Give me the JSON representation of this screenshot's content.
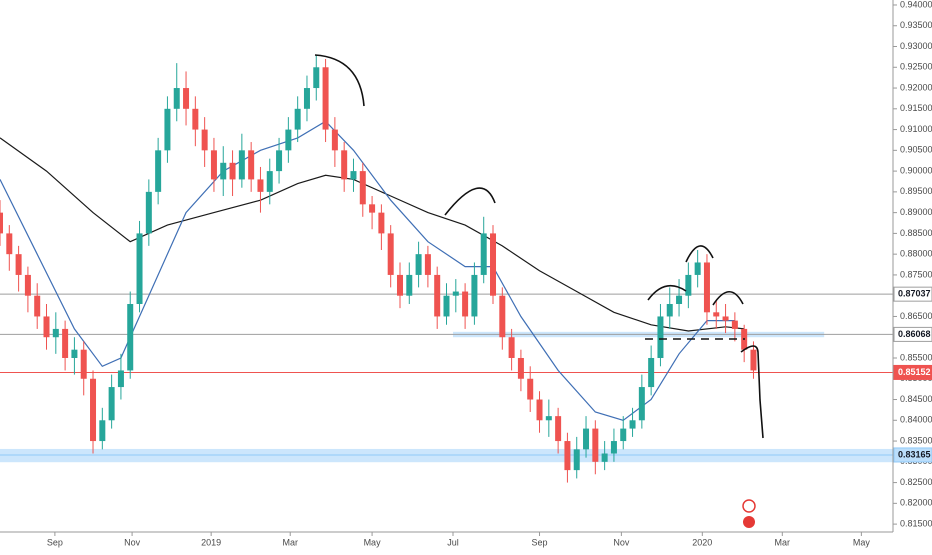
{
  "chart_data": {
    "type": "candlestick",
    "up_color": "#26a69a",
    "down_color": "#ef5350",
    "xlim": [
      0,
      96
    ],
    "ylim": [
      0.8131,
      0.9412
    ],
    "xticks": [
      {
        "value": 5.9,
        "label": "Sep"
      },
      {
        "value": 14.2,
        "label": "Nov"
      },
      {
        "value": 22.7,
        "label": "2019"
      },
      {
        "value": 31.2,
        "label": "Mar"
      },
      {
        "value": 40.0,
        "label": "May"
      },
      {
        "value": 48.7,
        "label": "Jul"
      },
      {
        "value": 58.0,
        "label": "Sep"
      },
      {
        "value": 66.8,
        "label": "Nov"
      },
      {
        "value": 75.5,
        "label": "2020"
      },
      {
        "value": 84.1,
        "label": "Mar"
      },
      {
        "value": 92.6,
        "label": "May"
      }
    ],
    "yticks": [
      {
        "value": 0.815,
        "label": "0.81500"
      },
      {
        "value": 0.82,
        "label": "0.82000"
      },
      {
        "value": 0.825,
        "label": "0.82500"
      },
      {
        "value": 0.83,
        "label": "0.83000"
      },
      {
        "value": 0.835,
        "label": "0.83500"
      },
      {
        "value": 0.84,
        "label": "0.84000"
      },
      {
        "value": 0.845,
        "label": "0.84500"
      },
      {
        "value": 0.85,
        "label": "0.85000"
      },
      {
        "value": 0.855,
        "label": "0.85500"
      },
      {
        "value": 0.86,
        "label": "0.86000"
      },
      {
        "value": 0.865,
        "label": "0.86500"
      },
      {
        "value": 0.87,
        "label": "0.87000"
      },
      {
        "value": 0.875,
        "label": "0.87500"
      },
      {
        "value": 0.88,
        "label": "0.88000"
      },
      {
        "value": 0.885,
        "label": "0.88500"
      },
      {
        "value": 0.89,
        "label": "0.89000"
      },
      {
        "value": 0.895,
        "label": "0.89500"
      },
      {
        "value": 0.9,
        "label": "0.90000"
      },
      {
        "value": 0.905,
        "label": "0.90500"
      },
      {
        "value": 0.91,
        "label": "0.91000"
      },
      {
        "value": 0.915,
        "label": "0.91500"
      },
      {
        "value": 0.92,
        "label": "0.92000"
      },
      {
        "value": 0.925,
        "label": "0.92500"
      },
      {
        "value": 0.93,
        "label": "0.93000"
      },
      {
        "value": 0.935,
        "label": "0.93500"
      },
      {
        "value": 0.94,
        "label": "0.94000"
      }
    ],
    "x": [
      0,
      1,
      2,
      3,
      4,
      5,
      6,
      7,
      8,
      9,
      10,
      11,
      12,
      13,
      14,
      15,
      16,
      17,
      18,
      19,
      20,
      21,
      22,
      23,
      24,
      25,
      26,
      27,
      28,
      29,
      30,
      31,
      32,
      33,
      34,
      35,
      36,
      37,
      38,
      39,
      40,
      41,
      42,
      43,
      44,
      45,
      46,
      47,
      48,
      49,
      50,
      51,
      52,
      53,
      54,
      55,
      56,
      57,
      58,
      59,
      60,
      61,
      62,
      63,
      64,
      65,
      66,
      67,
      68,
      69,
      70,
      71,
      72,
      73,
      74,
      75,
      76,
      77,
      78,
      79,
      80,
      81
    ],
    "candles": [
      [
        0.89,
        0.893,
        0.882,
        0.885
      ],
      [
        0.885,
        0.887,
        0.876,
        0.88
      ],
      [
        0.88,
        0.882,
        0.871,
        0.875
      ],
      [
        0.875,
        0.877,
        0.866,
        0.87
      ],
      [
        0.87,
        0.873,
        0.862,
        0.865
      ],
      [
        0.865,
        0.868,
        0.857,
        0.86
      ],
      [
        0.86,
        0.866,
        0.856,
        0.862
      ],
      [
        0.862,
        0.864,
        0.852,
        0.855
      ],
      [
        0.855,
        0.86,
        0.851,
        0.857
      ],
      [
        0.857,
        0.859,
        0.846,
        0.85
      ],
      [
        0.85,
        0.852,
        0.832,
        0.835
      ],
      [
        0.835,
        0.843,
        0.833,
        0.84
      ],
      [
        0.84,
        0.851,
        0.838,
        0.848
      ],
      [
        0.848,
        0.856,
        0.845,
        0.852
      ],
      [
        0.852,
        0.871,
        0.85,
        0.868
      ],
      [
        0.868,
        0.888,
        0.866,
        0.885
      ],
      [
        0.885,
        0.898,
        0.882,
        0.895
      ],
      [
        0.895,
        0.908,
        0.892,
        0.905
      ],
      [
        0.905,
        0.918,
        0.902,
        0.915
      ],
      [
        0.915,
        0.926,
        0.912,
        0.92
      ],
      [
        0.92,
        0.924,
        0.911,
        0.915
      ],
      [
        0.915,
        0.918,
        0.906,
        0.91
      ],
      [
        0.91,
        0.913,
        0.901,
        0.905
      ],
      [
        0.905,
        0.908,
        0.895,
        0.898
      ],
      [
        0.898,
        0.906,
        0.894,
        0.902
      ],
      [
        0.902,
        0.905,
        0.894,
        0.898
      ],
      [
        0.898,
        0.909,
        0.896,
        0.905
      ],
      [
        0.905,
        0.907,
        0.895,
        0.898
      ],
      [
        0.898,
        0.901,
        0.89,
        0.895
      ],
      [
        0.895,
        0.903,
        0.892,
        0.9
      ],
      [
        0.9,
        0.908,
        0.897,
        0.905
      ],
      [
        0.905,
        0.913,
        0.902,
        0.91
      ],
      [
        0.91,
        0.918,
        0.907,
        0.915
      ],
      [
        0.915,
        0.923,
        0.912,
        0.92
      ],
      [
        0.92,
        0.928,
        0.917,
        0.925
      ],
      [
        0.925,
        0.927,
        0.907,
        0.91
      ],
      [
        0.91,
        0.913,
        0.901,
        0.905
      ],
      [
        0.905,
        0.907,
        0.895,
        0.898
      ],
      [
        0.898,
        0.903,
        0.895,
        0.9
      ],
      [
        0.9,
        0.902,
        0.889,
        0.892
      ],
      [
        0.892,
        0.894,
        0.886,
        0.89
      ],
      [
        0.89,
        0.892,
        0.881,
        0.885
      ],
      [
        0.885,
        0.887,
        0.872,
        0.875
      ],
      [
        0.875,
        0.878,
        0.867,
        0.87
      ],
      [
        0.87,
        0.878,
        0.868,
        0.875
      ],
      [
        0.875,
        0.883,
        0.872,
        0.88
      ],
      [
        0.88,
        0.882,
        0.872,
        0.875
      ],
      [
        0.875,
        0.877,
        0.862,
        0.865
      ],
      [
        0.865,
        0.873,
        0.863,
        0.87
      ],
      [
        0.87,
        0.874,
        0.866,
        0.871
      ],
      [
        0.871,
        0.873,
        0.862,
        0.865
      ],
      [
        0.865,
        0.878,
        0.863,
        0.875
      ],
      [
        0.875,
        0.889,
        0.873,
        0.885
      ],
      [
        0.885,
        0.887,
        0.868,
        0.87
      ],
      [
        0.87,
        0.872,
        0.857,
        0.86
      ],
      [
        0.86,
        0.862,
        0.852,
        0.855
      ],
      [
        0.855,
        0.857,
        0.847,
        0.85
      ],
      [
        0.85,
        0.853,
        0.842,
        0.845
      ],
      [
        0.845,
        0.847,
        0.837,
        0.84
      ],
      [
        0.84,
        0.845,
        0.836,
        0.841
      ],
      [
        0.841,
        0.843,
        0.832,
        0.835
      ],
      [
        0.835,
        0.837,
        0.825,
        0.828
      ],
      [
        0.828,
        0.836,
        0.826,
        0.833
      ],
      [
        0.833,
        0.841,
        0.831,
        0.838
      ],
      [
        0.838,
        0.84,
        0.827,
        0.83
      ],
      [
        0.83,
        0.835,
        0.828,
        0.832
      ],
      [
        0.832,
        0.838,
        0.83,
        0.835
      ],
      [
        0.835,
        0.841,
        0.833,
        0.838
      ],
      [
        0.838,
        0.843,
        0.836,
        0.84
      ],
      [
        0.84,
        0.851,
        0.838,
        0.848
      ],
      [
        0.848,
        0.858,
        0.846,
        0.855
      ],
      [
        0.855,
        0.868,
        0.853,
        0.865
      ],
      [
        0.865,
        0.872,
        0.862,
        0.868
      ],
      [
        0.868,
        0.874,
        0.865,
        0.87
      ],
      [
        0.87,
        0.878,
        0.867,
        0.875
      ],
      [
        0.875,
        0.881,
        0.872,
        0.878
      ],
      [
        0.878,
        0.88,
        0.863,
        0.866
      ],
      [
        0.866,
        0.869,
        0.862,
        0.865
      ],
      [
        0.865,
        0.868,
        0.861,
        0.864
      ],
      [
        0.864,
        0.866,
        0.859,
        0.862
      ],
      [
        0.862,
        0.863,
        0.854,
        0.857
      ],
      [
        0.857,
        0.859,
        0.85,
        0.852
      ]
    ],
    "overlays": [
      {
        "color": "#1a1a1a",
        "x": [
          0,
          5,
          10,
          14,
          18,
          23,
          28,
          32,
          35,
          38,
          42,
          46,
          50,
          54,
          58,
          62,
          66,
          70,
          74,
          78,
          80
        ],
        "values": [
          0.908,
          0.9,
          0.89,
          0.883,
          0.887,
          0.89,
          0.893,
          0.897,
          0.899,
          0.898,
          0.894,
          0.89,
          0.887,
          0.882,
          0.876,
          0.871,
          0.866,
          0.863,
          0.8615,
          0.8625,
          0.862
        ]
      },
      {
        "color": "#3f6fb5",
        "x": [
          0,
          4,
          8,
          11,
          13,
          16,
          20,
          24,
          28,
          32,
          35,
          38,
          42,
          46,
          50,
          53,
          56,
          60,
          64,
          67,
          70,
          73,
          76,
          79
        ],
        "values": [
          0.898,
          0.88,
          0.862,
          0.853,
          0.855,
          0.87,
          0.89,
          0.9,
          0.905,
          0.908,
          0.912,
          0.905,
          0.893,
          0.883,
          0.877,
          0.877,
          0.865,
          0.852,
          0.842,
          0.84,
          0.845,
          0.856,
          0.864,
          0.864
        ]
      }
    ],
    "zones": [
      {
        "from": 0.86,
        "to": 0.8613,
        "x": [
          48.7,
          88.6
        ],
        "color": "#bbdefb"
      },
      {
        "from": 0.8299,
        "to": 0.8331,
        "x": [
          0,
          96
        ],
        "color": "#bbdefb"
      }
    ],
    "hlines": [
      {
        "value": 0.87037,
        "color": "#9e9e9e",
        "label_color": "#131722",
        "label_bg": "#ffffff"
      },
      {
        "value": 0.86068,
        "color": "#9e9e9e",
        "label_color": "#131722",
        "label_bg": "#ffffff"
      },
      {
        "value": 0.85152,
        "color": "#ef5350",
        "label_color": "#ffffff",
        "label_bg": "#ef5350"
      },
      {
        "value": 0.83165,
        "color": "#90caf9",
        "label_color": "#131722",
        "label_bg": "#bbdefb"
      }
    ]
  }
}
